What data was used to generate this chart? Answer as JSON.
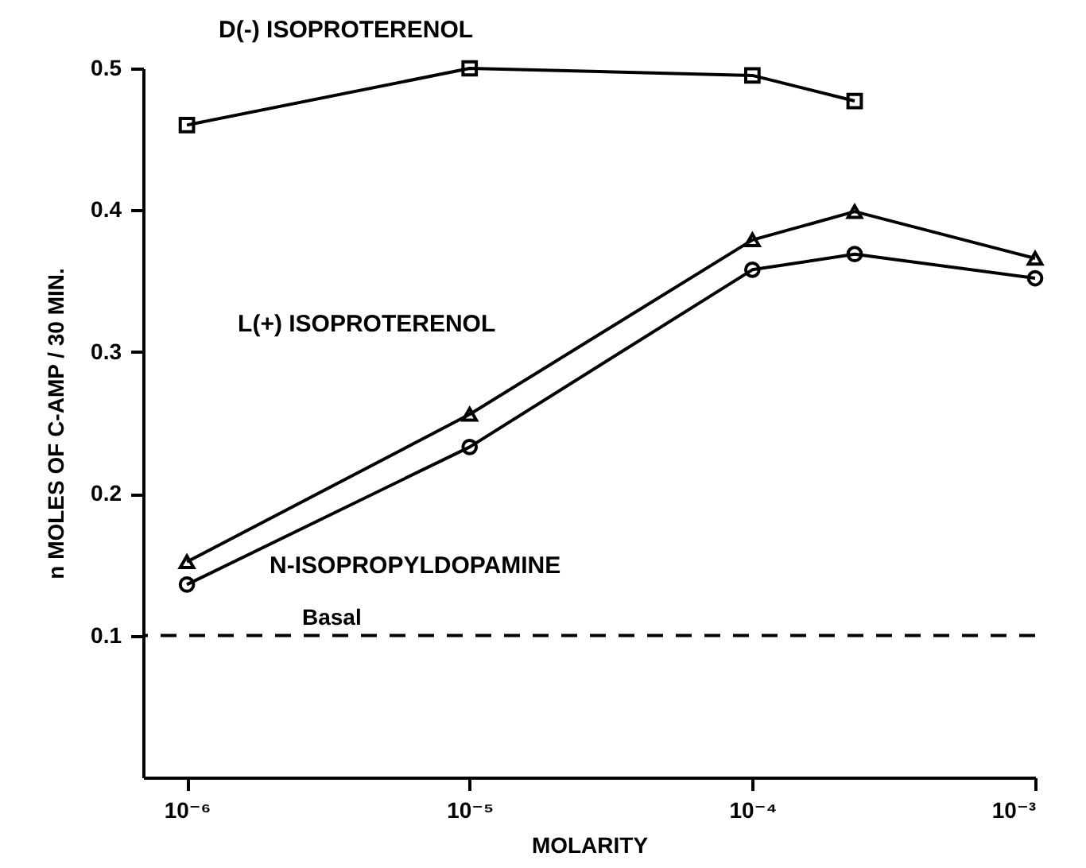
{
  "chart_data": {
    "type": "line",
    "xlabel": "MOLARITY",
    "ylabel": "n MOLES OF C-AMP / 30 MIN.",
    "log": "x",
    "grid": false,
    "xlim": [
      7e-07,
      0.001
    ],
    "xticks": [
      {
        "value": 1e-06,
        "label": "10⁻⁶"
      },
      {
        "value": 1e-05,
        "label": "10⁻⁵"
      },
      {
        "value": 0.0001,
        "label": "10⁻⁴"
      },
      {
        "value": 0.001,
        "label": "10⁻³"
      }
    ],
    "ylim": [
      0,
      0.5
    ],
    "yticks": [
      0.1,
      0.2,
      0.3,
      0.4,
      0.5
    ],
    "series": [
      {
        "name": "D(-) ISOPROTERENOL",
        "color": "#000000",
        "marker": "square",
        "x": [
          1e-06,
          1e-05,
          0.0001,
          0.00023
        ],
        "values": [
          0.46,
          0.5,
          0.495,
          0.477
        ]
      },
      {
        "name": "L(+) ISOPROTERENOL",
        "color": "#000000",
        "marker": "triangle",
        "x": [
          1e-06,
          1e-05,
          0.0001,
          0.00023,
          0.001
        ],
        "values": [
          0.152,
          0.256,
          0.379,
          0.399,
          0.366
        ]
      },
      {
        "name": "N-ISOPROPYLDOPAMINE",
        "color": "#000000",
        "marker": "circle",
        "x": [
          1e-06,
          1e-05,
          0.0001,
          0.00023,
          0.001
        ],
        "values": [
          0.136,
          0.233,
          0.358,
          0.369,
          0.352
        ]
      }
    ],
    "ref_lines": [
      {
        "axis": "y",
        "value": 0.1,
        "label": "Basal",
        "line_style": "dashed",
        "color": "#000000"
      }
    ]
  }
}
